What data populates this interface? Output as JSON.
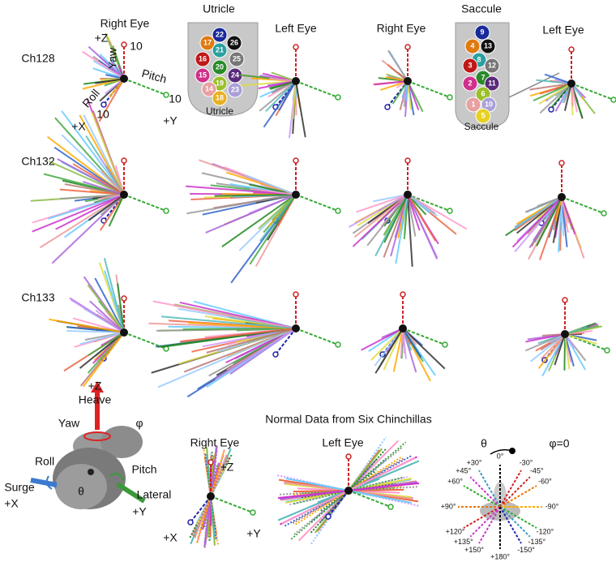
{
  "header": {
    "utricle": "Utricle",
    "saccule": "Saccule"
  },
  "column_labels": [
    "Right Eye",
    "Left Eye",
    "Right Eye",
    "Left Eye"
  ],
  "axis_key": {
    "z": "+Z",
    "z_scale": "10",
    "yaw": "Yaw",
    "pitch": "Pitch",
    "roll": "Roll",
    "x": "+X",
    "x_scale": "10",
    "y": "+Y",
    "y_scale": "10"
  },
  "utricle_array": {
    "label": "Utricle",
    "electrodes": [
      "22",
      "17",
      "26",
      "21",
      "25",
      "16",
      "20",
      "24",
      "15",
      "19",
      "23",
      "14",
      "18"
    ]
  },
  "saccule_array": {
    "label": "Saccule",
    "electrodes": [
      "9",
      "4",
      "13",
      "8",
      "3",
      "12",
      "7",
      "2",
      "11",
      "6",
      "1",
      "10",
      "5"
    ]
  },
  "rows": [
    {
      "label": "Ch128"
    },
    {
      "label": "Ch132"
    },
    {
      "label": "Ch133"
    }
  ],
  "animal": {
    "z": "+Z",
    "heave": "Heave",
    "yaw": "Yaw",
    "phi": "φ",
    "roll": "Roll",
    "pitch": "Pitch",
    "surge": "Surge",
    "x": "+X",
    "theta": "θ",
    "lateral": "Lateral",
    "y": "+Y"
  },
  "normal": {
    "title": "Normal Data from Six Chinchillas",
    "right_eye": "Right Eye",
    "left_eye": "Left Eye",
    "z": "+Z",
    "x": "+X",
    "y": "+Y"
  },
  "polar_key": {
    "theta": "θ",
    "phi": "φ=0",
    "angles": [
      "0°",
      "-30°",
      "+30°",
      "-45°",
      "+45°",
      "-60°",
      "+60°",
      "-90°",
      "+90°",
      "-120°",
      "+120°",
      "-135°",
      "+135°",
      "+150°",
      "-150°",
      "+180°"
    ]
  }
}
